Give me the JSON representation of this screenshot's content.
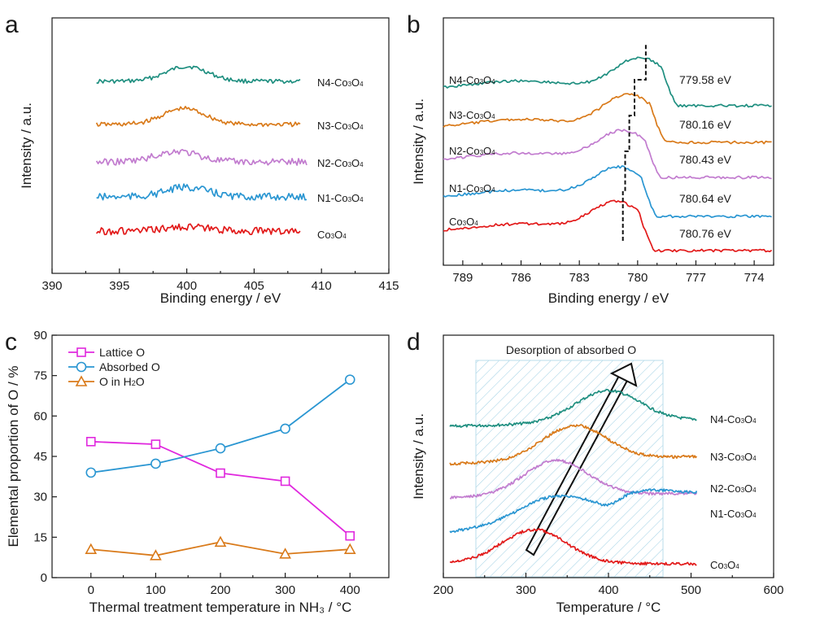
{
  "colors": {
    "teal": "#1f8f80",
    "orange": "#d97a1a",
    "violet": "#c27ccf",
    "blue": "#2a96d2",
    "red": "#e21a1a",
    "magenta": "#e028de",
    "shade": "#9fd0e4"
  },
  "panels": {
    "a": {
      "letter": "a",
      "xlabel": "Binding energy / eV",
      "ylabel": "Intensity / a.u."
    },
    "b": {
      "letter": "b",
      "xlabel": "Binding energy / eV",
      "ylabel": "Intensity / a.u."
    },
    "c": {
      "letter": "c",
      "xlabel": "Thermal treatment temperature in NH₃ / °C",
      "ylabel": "Elemental proportion of O / %"
    },
    "d": {
      "letter": "d",
      "xlabel": "Temperature / °C",
      "ylabel": "Intensity / a.u.",
      "annotation": "Desorption of absorbed O"
    }
  },
  "chart_data": [
    {
      "type": "line",
      "panel": "a",
      "xlabel": "Binding energy / eV",
      "ylabel": "Intensity / a.u.",
      "xlim": [
        390,
        415
      ],
      "xticks": [
        390,
        395,
        400,
        405,
        410,
        415
      ],
      "series": [
        {
          "name": "N4-Co₃O₄",
          "display": [
            "N4-Co",
            "3",
            "O",
            "4"
          ],
          "color": "#1f8f80",
          "x_range": [
            393.3,
            408.5
          ],
          "peak_x": 400,
          "peak_height": 0.55,
          "noise": 0.18,
          "offset": 4
        },
        {
          "name": "N3-Co₃O₄",
          "display": [
            "N3-Co",
            "3",
            "O",
            "4"
          ],
          "color": "#d97a1a",
          "x_range": [
            393.3,
            408.5
          ],
          "peak_x": 399.8,
          "peak_height": 0.6,
          "noise": 0.2,
          "offset": 3
        },
        {
          "name": "N2-Co₃O₄",
          "display": [
            "N2-Co",
            "3",
            "O",
            "4"
          ],
          "color": "#c27ccf",
          "x_range": [
            393.3,
            409
          ],
          "peak_x": 399.3,
          "peak_height": 0.35,
          "noise": 0.3,
          "offset": 2
        },
        {
          "name": "N1-Co₃O₄",
          "display": [
            "N1-Co",
            "3",
            "O",
            "4"
          ],
          "color": "#2a96d2",
          "x_range": [
            393.3,
            409
          ],
          "peak_x": 400,
          "peak_height": 0.3,
          "noise": 0.32,
          "offset": 1
        },
        {
          "name": "Co₃O₄",
          "display": [
            "Co",
            "3",
            "O",
            "4"
          ],
          "color": "#e21a1a",
          "x_range": [
            393.3,
            408.5
          ],
          "peak_x": 400,
          "peak_height": 0.05,
          "noise": 0.32,
          "offset": 0
        }
      ]
    },
    {
      "type": "line",
      "panel": "b",
      "xlabel": "Binding energy / eV",
      "ylabel": "Intensity / a.u.",
      "xlim": [
        790,
        773
      ],
      "xticks": [
        789,
        786,
        783,
        780,
        777,
        774
      ],
      "series": [
        {
          "name": "N4-Co₃O₄",
          "display": [
            "N4-Co",
            "3",
            "O",
            "4"
          ],
          "color": "#1f8f80",
          "peak_label": "779.58 eV",
          "peak_x": 779.58,
          "offset": 4
        },
        {
          "name": "N3-Co₃O₄",
          "display": [
            "N3-Co",
            "3",
            "O",
            "4"
          ],
          "color": "#d97a1a",
          "peak_label": "780.16 eV",
          "peak_x": 780.16,
          "offset": 3
        },
        {
          "name": "N2-Co₃O₄",
          "display": [
            "N2-Co",
            "3",
            "O",
            "4"
          ],
          "color": "#c27ccf",
          "peak_label": "780.43 eV",
          "peak_x": 780.43,
          "offset": 2
        },
        {
          "name": "N1-Co₃O₄",
          "display": [
            "N1-Co",
            "3",
            "O",
            "4"
          ],
          "color": "#2a96d2",
          "peak_label": "780.64 eV",
          "peak_x": 780.64,
          "offset": 1
        },
        {
          "name": "Co₃O₄",
          "display": [
            "Co",
            "3",
            "O",
            "4"
          ],
          "color": "#e21a1a",
          "peak_label": "780.76 eV",
          "peak_x": 780.76,
          "offset": 0
        }
      ]
    },
    {
      "type": "line",
      "panel": "c",
      "xlabel": "Thermal treatment temperature in NH₃ / °C",
      "ylabel": "Elemental proportion of O / %",
      "xlim": [
        -60,
        460
      ],
      "ylim": [
        0,
        90
      ],
      "xticks": [
        0,
        100,
        200,
        300,
        400
      ],
      "yticks": [
        0,
        15,
        30,
        45,
        60,
        75,
        90
      ],
      "legend": "top-left",
      "x": [
        0,
        100,
        200,
        300,
        400
      ],
      "series": [
        {
          "name": "Lattice O",
          "display": [
            "Lattice O"
          ],
          "marker": "square",
          "color": "#e028de",
          "values": [
            50.5,
            49.5,
            38.8,
            35.8,
            15.5
          ]
        },
        {
          "name": "Absorbed O",
          "display": [
            "Absorbed O"
          ],
          "marker": "circle",
          "color": "#2a96d2",
          "values": [
            39,
            42.3,
            48,
            55.3,
            73.5
          ]
        },
        {
          "name": "O in H₂O",
          "display": [
            "O in H",
            "2",
            "O"
          ],
          "marker": "triangle",
          "color": "#d97a1a",
          "values": [
            10.5,
            8.2,
            13.2,
            8.8,
            10.5
          ]
        }
      ]
    },
    {
      "type": "line",
      "panel": "d",
      "xlabel": "Temperature / °C",
      "ylabel": "Intensity / a.u.",
      "xlim": [
        200,
        600
      ],
      "xticks": [
        200,
        300,
        400,
        500,
        600
      ],
      "shaded_range": [
        236,
        464
      ],
      "annotation": "Desorption of absorbed O",
      "series": [
        {
          "name": "N4-Co₃O₄",
          "display": [
            "N4-Co",
            "3",
            "O",
            "4"
          ],
          "color": "#1f8f80",
          "peak_x": 400,
          "offset": 4
        },
        {
          "name": "N3-Co₃O₄",
          "display": [
            "N3-Co",
            "3",
            "O",
            "4"
          ],
          "color": "#d97a1a",
          "peak_x": 360,
          "offset": 3
        },
        {
          "name": "N2-Co₃O₄",
          "display": [
            "N2-Co",
            "3",
            "O",
            "4"
          ],
          "color": "#c27ccf",
          "peak_x": 337,
          "offset": 2
        },
        {
          "name": "N1-Co₃O₄",
          "display": [
            "N1-Co",
            "3",
            "O",
            "4"
          ],
          "color": "#2a96d2",
          "peak_x": 340,
          "offset": 1
        },
        {
          "name": "Co₃O₄",
          "display": [
            "Co",
            "3",
            "O",
            "4"
          ],
          "color": "#e21a1a",
          "peak_x": 310,
          "offset": 0
        }
      ]
    }
  ]
}
